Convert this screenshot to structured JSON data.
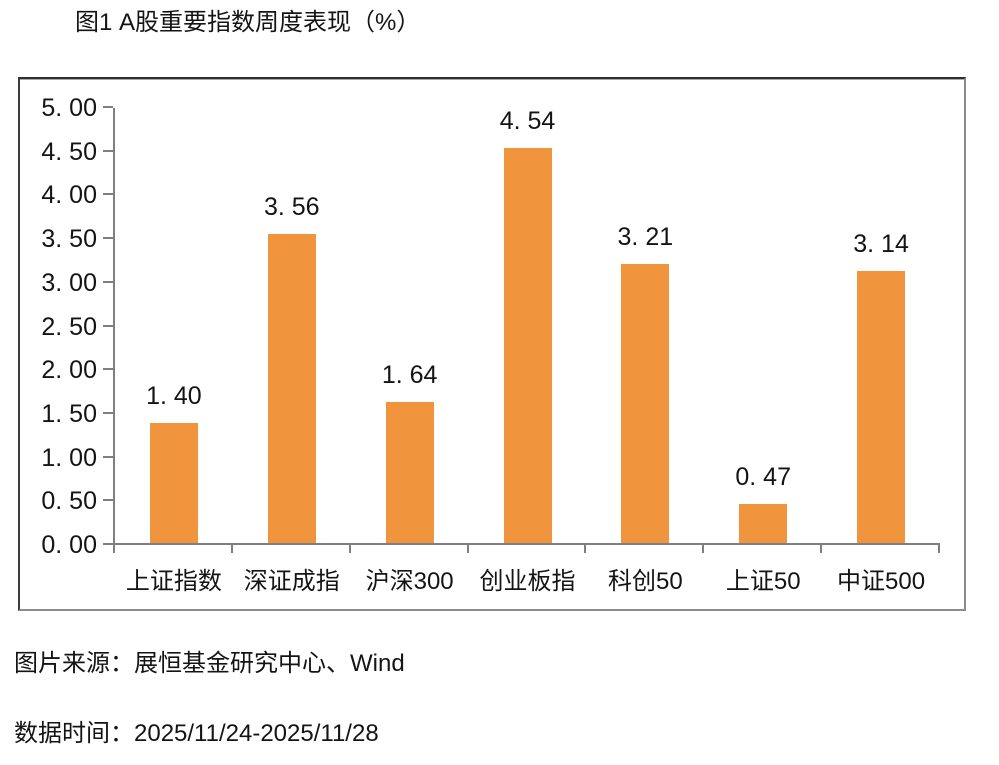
{
  "title": "图1 A股重要指数周度表现（%）",
  "source_line": "图片来源：展恒基金研究中心、Wind",
  "date_line": "数据时间：2025/11/24-2025/11/28",
  "colors": {
    "bar": "#F1943E",
    "axis": "#7f7f7f",
    "text": "#141414"
  },
  "chart_data": {
    "type": "bar",
    "categories": [
      "上证指数",
      "深证成指",
      "沪深300",
      "创业板指",
      "科创50",
      "上证50",
      "中证500"
    ],
    "values": [
      1.4,
      3.56,
      1.64,
      4.54,
      3.21,
      0.47,
      3.14
    ],
    "value_labels": [
      "1. 40",
      "3. 56",
      "1. 64",
      "4. 54",
      "3. 21",
      "0. 47",
      "3. 14"
    ],
    "title": "图1 A股重要指数周度表现（%）",
    "xlabel": "",
    "ylabel": "",
    "ylim": [
      0,
      5
    ],
    "ytick_step": 0.5,
    "ytick_labels": [
      "0. 00",
      "0. 50",
      "1. 00",
      "1. 50",
      "2. 00",
      "2. 50",
      "3. 00",
      "3. 50",
      "4. 00",
      "4. 50",
      "5. 00"
    ],
    "grid": false,
    "legend": null,
    "bar_color": "#F1943E"
  }
}
